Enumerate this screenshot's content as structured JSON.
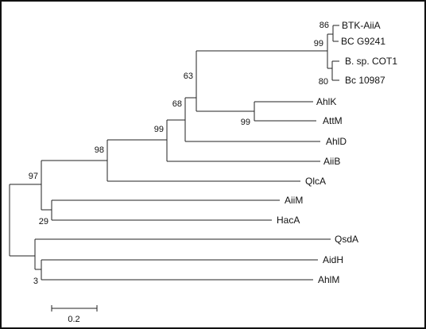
{
  "tree": {
    "leaves": [
      {
        "id": "btk",
        "label": "BTK-AiiA"
      },
      {
        "id": "bcg",
        "label": "BC G9241"
      },
      {
        "id": "bsp",
        "label": "B. sp. COT1"
      },
      {
        "id": "bc109",
        "label": "Bc 10987"
      },
      {
        "id": "ahlk",
        "label": "AhlK"
      },
      {
        "id": "attm",
        "label": "AttM"
      },
      {
        "id": "ahld",
        "label": "AhlD"
      },
      {
        "id": "aiib",
        "label": "AiiB"
      },
      {
        "id": "qlca",
        "label": "QlcA"
      },
      {
        "id": "aiim",
        "label": "AiiM"
      },
      {
        "id": "haca",
        "label": "HacA"
      },
      {
        "id": "qsda",
        "label": "QsdA"
      },
      {
        "id": "aidh",
        "label": "AidH"
      },
      {
        "id": "ahlm",
        "label": "AhlM"
      }
    ],
    "bootstrap": [
      {
        "id": "b86",
        "value": "86"
      },
      {
        "id": "b99a",
        "value": "99"
      },
      {
        "id": "b80",
        "value": "80"
      },
      {
        "id": "b63",
        "value": "63"
      },
      {
        "id": "b99b",
        "value": "99"
      },
      {
        "id": "b68",
        "value": "68"
      },
      {
        "id": "b99c",
        "value": "99"
      },
      {
        "id": "b98",
        "value": "98"
      },
      {
        "id": "b97",
        "value": "97"
      },
      {
        "id": "b29",
        "value": "29"
      },
      {
        "id": "b3",
        "value": "3"
      }
    ],
    "scale_bar": {
      "label": "0.2",
      "length": 0.2
    }
  }
}
